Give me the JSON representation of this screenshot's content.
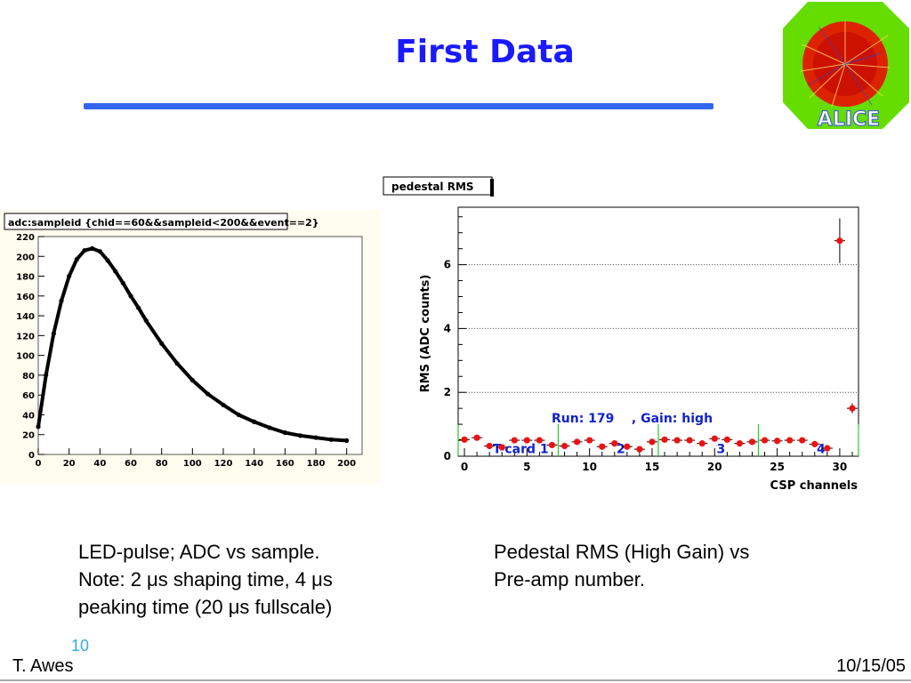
{
  "slide": {
    "title": "First Data",
    "page_number": "10",
    "author": "T. Awes",
    "date": "10/15/05",
    "caption_left": [
      "LED-pulse; ADC vs sample.",
      "Note: 2 μs shaping time, 4 μs",
      "peaking time (20 μs fullscale)"
    ],
    "caption_right": [
      "Pedestal RMS (High Gain) vs",
      "Pre-amp number."
    ],
    "logo_text": "ALICE",
    "colors": {
      "title": "#1a1aff",
      "rule": "#3366ee",
      "page_number": "#33aadd"
    }
  },
  "chart_data": [
    {
      "type": "scatter",
      "title": "adc:sampleid {chid==60&&sampleid<200&&event==2}",
      "xlabel": "",
      "ylabel": "",
      "xlim": [
        0,
        210
      ],
      "ylim": [
        0,
        220
      ],
      "xticks": [
        0,
        20,
        40,
        60,
        80,
        100,
        120,
        140,
        160,
        180,
        200
      ],
      "yticks": [
        0,
        20,
        40,
        60,
        80,
        100,
        120,
        140,
        160,
        180,
        200,
        220
      ],
      "grid": false,
      "series": [
        {
          "x": [
            0,
            5,
            10,
            15,
            20,
            25,
            30,
            35,
            40,
            45,
            50,
            55,
            60,
            65,
            70,
            80,
            90,
            100,
            110,
            120,
            130,
            140,
            150,
            160,
            170,
            180,
            190,
            200
          ],
          "y": [
            28,
            80,
            122,
            155,
            180,
            197,
            206,
            208,
            205,
            196,
            185,
            173,
            160,
            148,
            135,
            112,
            92,
            75,
            61,
            50,
            40,
            33,
            27,
            22,
            19,
            17,
            15,
            14
          ]
        }
      ]
    },
    {
      "type": "scatter",
      "title": "pedestal RMS",
      "xlabel": "CSP channels",
      "ylabel": "RMS (ADC counts)",
      "xlim": [
        -0.5,
        31.5
      ],
      "ylim": [
        0,
        7.8
      ],
      "xticks": [
        0,
        5,
        10,
        15,
        20,
        25,
        30
      ],
      "yticks": [
        0,
        2,
        4,
        6
      ],
      "grid": true,
      "annotation": "Run: 179    , Gain: high",
      "card_labels": [
        "T-card 1",
        "2",
        "3",
        "4"
      ],
      "card_label_x": [
        4.5,
        12.5,
        20.5,
        28.5
      ],
      "card_boundaries": [
        -0.5,
        7.5,
        15.5,
        23.5,
        31.5
      ],
      "series": [
        {
          "x": [
            0,
            1,
            2,
            3,
            4,
            5,
            6,
            7,
            8,
            9,
            10,
            11,
            12,
            13,
            14,
            15,
            16,
            17,
            18,
            19,
            20,
            21,
            22,
            23,
            24,
            25,
            26,
            27,
            28,
            29,
            30,
            31
          ],
          "y": [
            0.52,
            0.58,
            0.32,
            0.28,
            0.5,
            0.5,
            0.5,
            0.35,
            0.32,
            0.45,
            0.5,
            0.3,
            0.4,
            0.3,
            0.22,
            0.45,
            0.52,
            0.5,
            0.5,
            0.4,
            0.55,
            0.52,
            0.4,
            0.45,
            0.5,
            0.48,
            0.5,
            0.5,
            0.38,
            0.25,
            6.75,
            1.5
          ],
          "yerr": [
            0.05,
            0.05,
            0.05,
            0.05,
            0.05,
            0.05,
            0.05,
            0.05,
            0.05,
            0.05,
            0.05,
            0.05,
            0.05,
            0.05,
            0.05,
            0.05,
            0.05,
            0.05,
            0.05,
            0.05,
            0.05,
            0.05,
            0.05,
            0.05,
            0.05,
            0.05,
            0.05,
            0.05,
            0.05,
            0.05,
            0.7,
            0.15
          ]
        }
      ]
    }
  ]
}
